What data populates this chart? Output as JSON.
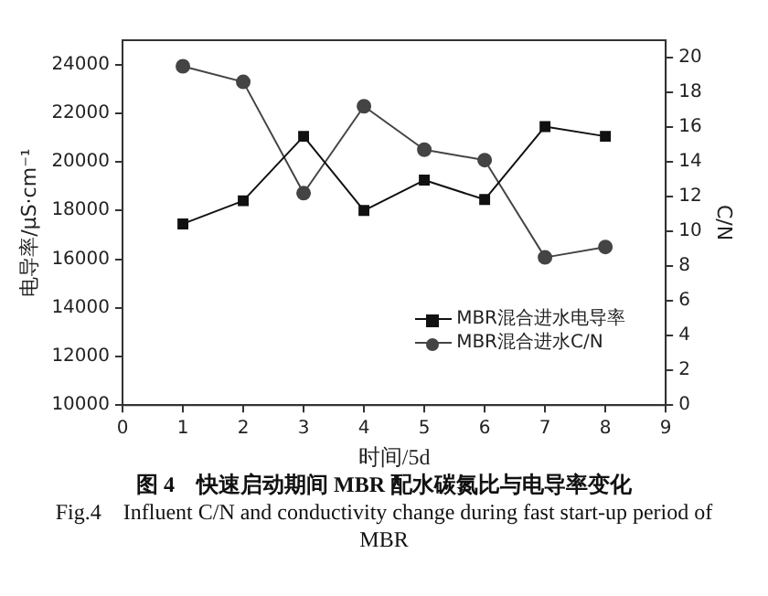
{
  "chart_data": {
    "type": "line",
    "xlabel": "时间/5d",
    "ylabel": "电导率/μS·cm⁻¹",
    "y2label": "C/N",
    "x": [
      1,
      2,
      3,
      4,
      5,
      6,
      7,
      8
    ],
    "series": [
      {
        "name": "MBR混合进水电导率",
        "color": "#111111",
        "marker": "square",
        "values": [
          17450,
          18400,
          21050,
          18000,
          19250,
          18450,
          21450,
          21050
        ]
      },
      {
        "name": "MBR混合进水C/N",
        "color": "#444444",
        "marker": "circle",
        "axis": "y2",
        "values": [
          19.5,
          18.6,
          12.2,
          17.2,
          14.7,
          14.1,
          8.5,
          9.1
        ]
      }
    ],
    "xlim": [
      0,
      9
    ],
    "xticks": [
      0,
      1,
      2,
      3,
      4,
      5,
      6,
      7,
      8,
      9
    ],
    "ylim": [
      10000,
      25000
    ],
    "yticks": [
      10000,
      12000,
      14000,
      16000,
      18000,
      20000,
      22000,
      24000
    ],
    "y2lim": [
      0,
      21
    ],
    "y2ticks": [
      0,
      2,
      4,
      6,
      8,
      10,
      12,
      14,
      16,
      18,
      20
    ],
    "grid": false,
    "legend": "bottom right",
    "line_style": "solid",
    "annotations": [
      "图 4　快速启动期间 MBR 配水碳氮比与电导率变化",
      "Fig.4　Influent C/N and conductivity change during fast start-up period of MBR"
    ]
  }
}
